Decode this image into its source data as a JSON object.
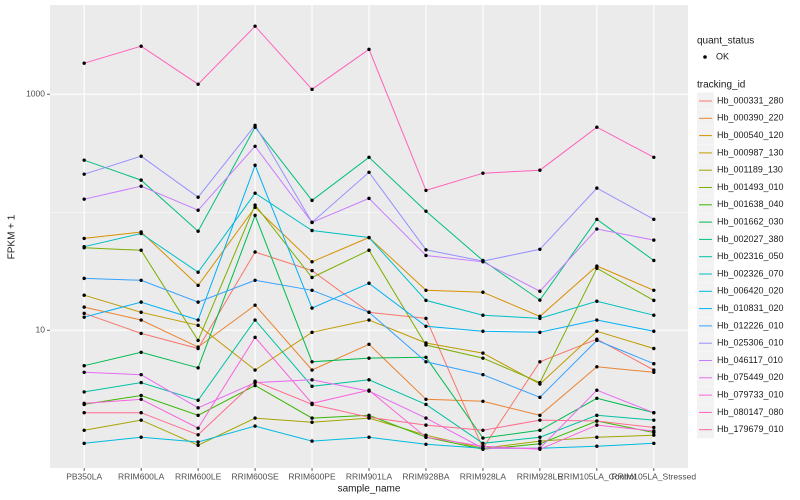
{
  "chart_data": {
    "type": "line",
    "x_label": "sample_name",
    "y_label": "FPKM + 1",
    "y_scale": "log10",
    "grid": true,
    "y_minor_grid": [
      100
    ],
    "legend_position": "right",
    "legend_title": "tracking_id",
    "point_legend": {
      "title": "quant_status",
      "labels": [
        "OK"
      ],
      "color": "#000000"
    },
    "categories": [
      "PB350LA",
      "RRIM600LA",
      "RRIM600LE",
      "RRIM600SE",
      "RRIM600PE",
      "RRIM901LA",
      "RRIM928BA",
      "RRIM928LA",
      "RRIM928LE",
      "RRIM105LA_Control",
      "RRIM105LA_Stressed"
    ],
    "ylim": [
      0.68,
      5700
    ],
    "yticks": [
      10,
      1000
    ],
    "series": [
      {
        "name": "Hb_000331_280",
        "color": "#F8766D",
        "values": [
          13.9,
          9.4,
          7.0,
          46,
          32,
          14.2,
          12.6,
          1.0,
          5.4,
          8.4,
          4.6
        ]
      },
      {
        "name": "Hb_000390_220",
        "color": "#EA8331",
        "values": [
          15.7,
          12.2,
          7.2,
          16.3,
          4.6,
          7.6,
          2.6,
          2.5,
          1.9,
          4.9,
          4.4
        ]
      },
      {
        "name": "Hb_000540_120",
        "color": "#D89000",
        "values": [
          60,
          68,
          24,
          110,
          38,
          61,
          21.8,
          21,
          13.1,
          35,
          21.8
        ]
      },
      {
        "name": "Hb_000987_130",
        "color": "#C09B00",
        "values": [
          19.8,
          14.2,
          11,
          4.6,
          9.6,
          12.2,
          7.8,
          6.4,
          3.5,
          9.8,
          7.0
        ]
      },
      {
        "name": "Hb_001189_130",
        "color": "#A3A500",
        "values": [
          1.42,
          1.73,
          1.06,
          1.8,
          1.66,
          1.8,
          1.29,
          1.0,
          1.15,
          1.24,
          1.29
        ]
      },
      {
        "name": "Hb_001493_010",
        "color": "#7CAE00",
        "values": [
          50,
          47.6,
          8.2,
          115,
          28,
          47.6,
          7.5,
          5.8,
          3.6,
          33.5,
          17.9
        ]
      },
      {
        "name": "Hb_001638_040",
        "color": "#39B600",
        "values": [
          2.35,
          2.8,
          1.9,
          3.4,
          1.8,
          1.9,
          1.24,
          0.98,
          1.09,
          1.7,
          1.36
        ]
      },
      {
        "name": "Hb_001662_030",
        "color": "#00BB4E",
        "values": [
          5.0,
          6.5,
          4.8,
          94,
          5.4,
          5.8,
          5.9,
          1.22,
          1.42,
          2.65,
          2.0
        ]
      },
      {
        "name": "Hb_002027_380",
        "color": "#00BF7D",
        "values": [
          276,
          187,
          69,
          525,
          126,
          292,
          102,
          39,
          18,
          87,
          39
        ]
      },
      {
        "name": "Hb_002316_050",
        "color": "#00C1A3",
        "values": [
          3.0,
          3.6,
          2.55,
          12.2,
          3.35,
          3.8,
          2.35,
          1.1,
          1.24,
          1.9,
          1.73
        ]
      },
      {
        "name": "Hb_002326_070",
        "color": "#00BFC4",
        "values": [
          51,
          66,
          31,
          145,
          70,
          61,
          17.9,
          13.4,
          12.6,
          17.6,
          13.4
        ]
      },
      {
        "name": "Hb_006420_020",
        "color": "#00BAE0",
        "values": [
          1.1,
          1.24,
          1.13,
          1.54,
          1.15,
          1.24,
          1.08,
          1.0,
          1.0,
          1.04,
          1.1
        ]
      },
      {
        "name": "Hb_010831_020",
        "color": "#00B0F6",
        "values": [
          12.9,
          17.3,
          12.2,
          250,
          15.4,
          25,
          10.8,
          9.8,
          9.6,
          12.2,
          9.8
        ]
      },
      {
        "name": "Hb_012226_010",
        "color": "#35A2FF",
        "values": [
          27.5,
          26.5,
          17.3,
          26.5,
          21.8,
          14.2,
          5.4,
          4.2,
          2.7,
          8.2,
          5.2
        ]
      },
      {
        "name": "Hb_025306_010",
        "color": "#9590FF",
        "values": [
          210,
          298,
          134,
          545,
          82,
          218,
          48,
          38.5,
          48.5,
          160,
          87
        ]
      },
      {
        "name": "Hb_046117_010",
        "color": "#C77CFF",
        "values": [
          129,
          166,
          104,
          362,
          82,
          131,
          43,
          38,
          21.4,
          72,
          58
        ]
      },
      {
        "name": "Hb_075449_020",
        "color": "#E76BF3",
        "values": [
          4.4,
          4.2,
          2.2,
          3.6,
          3.8,
          3.05,
          1.8,
          1.0,
          1.0,
          3.1,
          2.0
        ]
      },
      {
        "name": "Hb_079733_010",
        "color": "#FA62DB",
        "values": [
          2.4,
          2.6,
          1.48,
          8.7,
          2.4,
          3.1,
          1.24,
          1.04,
          0.98,
          1.57,
          1.4
        ]
      },
      {
        "name": "Hb_080147_080",
        "color": "#FF62BC",
        "values": [
          1830,
          2550,
          1215,
          3770,
          1100,
          2400,
          153,
          214,
          227,
          525,
          292
        ]
      },
      {
        "name": "Hb_179679_010",
        "color": "#FF6C91",
        "values": [
          2.0,
          2.0,
          1.3,
          3.7,
          2.35,
          1.83,
          1.57,
          1.42,
          1.73,
          1.7,
          1.5
        ]
      }
    ]
  }
}
